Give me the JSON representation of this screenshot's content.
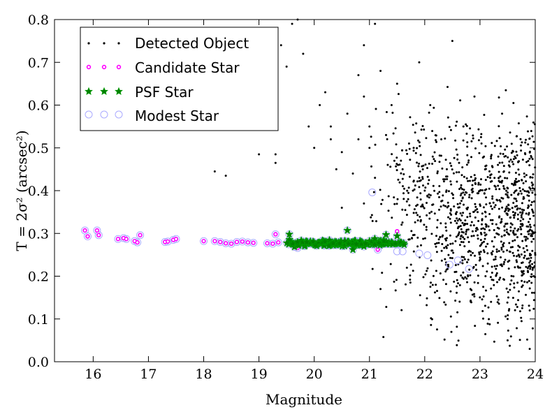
{
  "chart_data": {
    "type": "scatter",
    "xlabel": "Magnitude",
    "ylabel": "T = 2σ² (arcsec²)",
    "xlim": [
      15.3,
      24
    ],
    "ylim": [
      0.0,
      0.8
    ],
    "xticks": [
      16,
      17,
      18,
      19,
      20,
      21,
      22,
      23,
      24
    ],
    "yticks": [
      0.0,
      0.1,
      0.2,
      0.3,
      0.4,
      0.5,
      0.6,
      0.7,
      0.8
    ],
    "ytick_labels": [
      "0.0",
      "0.1",
      "0.2",
      "0.3",
      "0.4",
      "0.5",
      "0.6",
      "0.7",
      "0.8"
    ],
    "grid": false,
    "legend_position": "top-left",
    "series": [
      {
        "name": "Detected Object",
        "marker": "dot",
        "color": "#000000",
        "points": [
          [
            19.6,
            0.79
          ],
          [
            19.9,
            0.55
          ],
          [
            20.1,
            0.6
          ],
          [
            20.2,
            0.63
          ],
          [
            20.3,
            0.52
          ],
          [
            18.4,
            0.435
          ],
          [
            18.2,
            0.445
          ],
          [
            19.0,
            0.485
          ],
          [
            19.3,
            0.485
          ],
          [
            19.3,
            0.465
          ],
          [
            19.2,
            0.7
          ],
          [
            19.5,
            0.69
          ],
          [
            19.4,
            0.74
          ],
          [
            19.7,
            0.8
          ],
          [
            19.8,
            0.72
          ],
          [
            20.0,
            0.5
          ],
          [
            20.3,
            0.55
          ],
          [
            20.4,
            0.45
          ],
          [
            20.5,
            0.49
          ],
          [
            20.6,
            0.58
          ],
          [
            20.7,
            0.44
          ],
          [
            20.8,
            0.52
          ],
          [
            20.9,
            0.62
          ],
          [
            21.0,
            0.5
          ],
          [
            21.1,
            0.43
          ],
          [
            21.0,
            0.55
          ],
          [
            20.8,
            0.67
          ],
          [
            20.9,
            0.74
          ],
          [
            21.1,
            0.79
          ],
          [
            21.2,
            0.68
          ],
          [
            20.5,
            0.36
          ],
          [
            20.9,
            0.37
          ],
          [
            21.2,
            0.17
          ],
          [
            21.3,
            0.53
          ],
          [
            21.4,
            0.6
          ],
          [
            21.5,
            0.65
          ],
          [
            21.6,
            0.45
          ],
          [
            21.7,
            0.38
          ],
          [
            21.8,
            0.5
          ],
          [
            21.9,
            0.7
          ],
          [
            22.0,
            0.4
          ],
          [
            22.1,
            0.6
          ],
          [
            22.2,
            0.18
          ],
          [
            22.3,
            0.52
          ],
          [
            22.4,
            0.45
          ],
          [
            22.5,
            0.75
          ],
          [
            22.6,
            0.33
          ],
          [
            22.7,
            0.55
          ],
          [
            22.8,
            0.28
          ],
          [
            22.9,
            0.62
          ],
          [
            23.0,
            0.4
          ],
          [
            23.1,
            0.2
          ],
          [
            23.2,
            0.48
          ],
          [
            23.3,
            0.3
          ],
          [
            23.4,
            0.58
          ],
          [
            23.5,
            0.05
          ],
          [
            23.6,
            0.35
          ],
          [
            23.7,
            0.22
          ],
          [
            23.8,
            0.44
          ],
          [
            23.9,
            0.12
          ],
          [
            24.0,
            0.25
          ],
          [
            23.9,
            0.03
          ],
          [
            23.2,
            0.14
          ],
          [
            23.5,
            0.1
          ]
        ]
      },
      {
        "name": "Candidate Star",
        "marker": "circle",
        "color": "#ff00ff",
        "points": [
          [
            15.85,
            0.307
          ],
          [
            15.9,
            0.293
          ],
          [
            16.07,
            0.307
          ],
          [
            16.1,
            0.296
          ],
          [
            16.45,
            0.287
          ],
          [
            16.55,
            0.289
          ],
          [
            16.6,
            0.287
          ],
          [
            16.75,
            0.282
          ],
          [
            16.8,
            0.279
          ],
          [
            16.85,
            0.296
          ],
          [
            17.3,
            0.28
          ],
          [
            17.35,
            0.281
          ],
          [
            17.45,
            0.285
          ],
          [
            17.5,
            0.287
          ],
          [
            18.0,
            0.282
          ],
          [
            18.2,
            0.282
          ],
          [
            18.3,
            0.28
          ],
          [
            18.4,
            0.277
          ],
          [
            18.5,
            0.276
          ],
          [
            18.6,
            0.28
          ],
          [
            18.7,
            0.281
          ],
          [
            18.8,
            0.279
          ],
          [
            18.9,
            0.278
          ],
          [
            19.15,
            0.277
          ],
          [
            19.25,
            0.276
          ],
          [
            19.3,
            0.298
          ],
          [
            19.35,
            0.279
          ],
          [
            19.7,
            0.266
          ],
          [
            21.5,
            0.305
          ],
          [
            21.15,
            0.262
          ]
        ]
      },
      {
        "name": "PSF Star",
        "marker": "star",
        "color": "#008000",
        "x_range": [
          19.5,
          21.65
        ],
        "y_center": 0.277,
        "y_spread": 0.012,
        "extra_points": [
          [
            19.55,
            0.298
          ],
          [
            20.6,
            0.307
          ],
          [
            21.3,
            0.297
          ],
          [
            20.7,
            0.262
          ],
          [
            21.5,
            0.294
          ]
        ]
      },
      {
        "name": "Modest Star",
        "marker": "hollow-circle",
        "color": "#aaaaff",
        "points": [
          [
            15.85,
            0.307
          ],
          [
            15.9,
            0.293
          ],
          [
            16.07,
            0.307
          ],
          [
            16.1,
            0.296
          ],
          [
            16.45,
            0.287
          ],
          [
            16.55,
            0.289
          ],
          [
            16.6,
            0.287
          ],
          [
            16.75,
            0.282
          ],
          [
            16.8,
            0.279
          ],
          [
            16.85,
            0.296
          ],
          [
            17.3,
            0.28
          ],
          [
            17.35,
            0.281
          ],
          [
            17.45,
            0.285
          ],
          [
            17.5,
            0.287
          ],
          [
            18.0,
            0.282
          ],
          [
            18.2,
            0.282
          ],
          [
            18.3,
            0.28
          ],
          [
            18.4,
            0.277
          ],
          [
            18.5,
            0.276
          ],
          [
            18.6,
            0.28
          ],
          [
            18.7,
            0.281
          ],
          [
            18.8,
            0.279
          ],
          [
            18.9,
            0.278
          ],
          [
            19.15,
            0.277
          ],
          [
            19.25,
            0.276
          ],
          [
            19.3,
            0.298
          ],
          [
            19.35,
            0.279
          ],
          [
            19.7,
            0.266
          ],
          [
            21.05,
            0.396
          ],
          [
            21.15,
            0.262
          ],
          [
            21.5,
            0.258
          ],
          [
            21.6,
            0.258
          ],
          [
            21.9,
            0.253
          ],
          [
            22.05,
            0.249
          ],
          [
            22.45,
            0.227
          ],
          [
            22.6,
            0.237
          ],
          [
            22.8,
            0.217
          ]
        ]
      }
    ],
    "dense_cloud": {
      "name": "Detected Object",
      "x_range": [
        20.9,
        24.0
      ],
      "y_range": [
        0.03,
        0.8
      ],
      "count": 1100
    }
  }
}
